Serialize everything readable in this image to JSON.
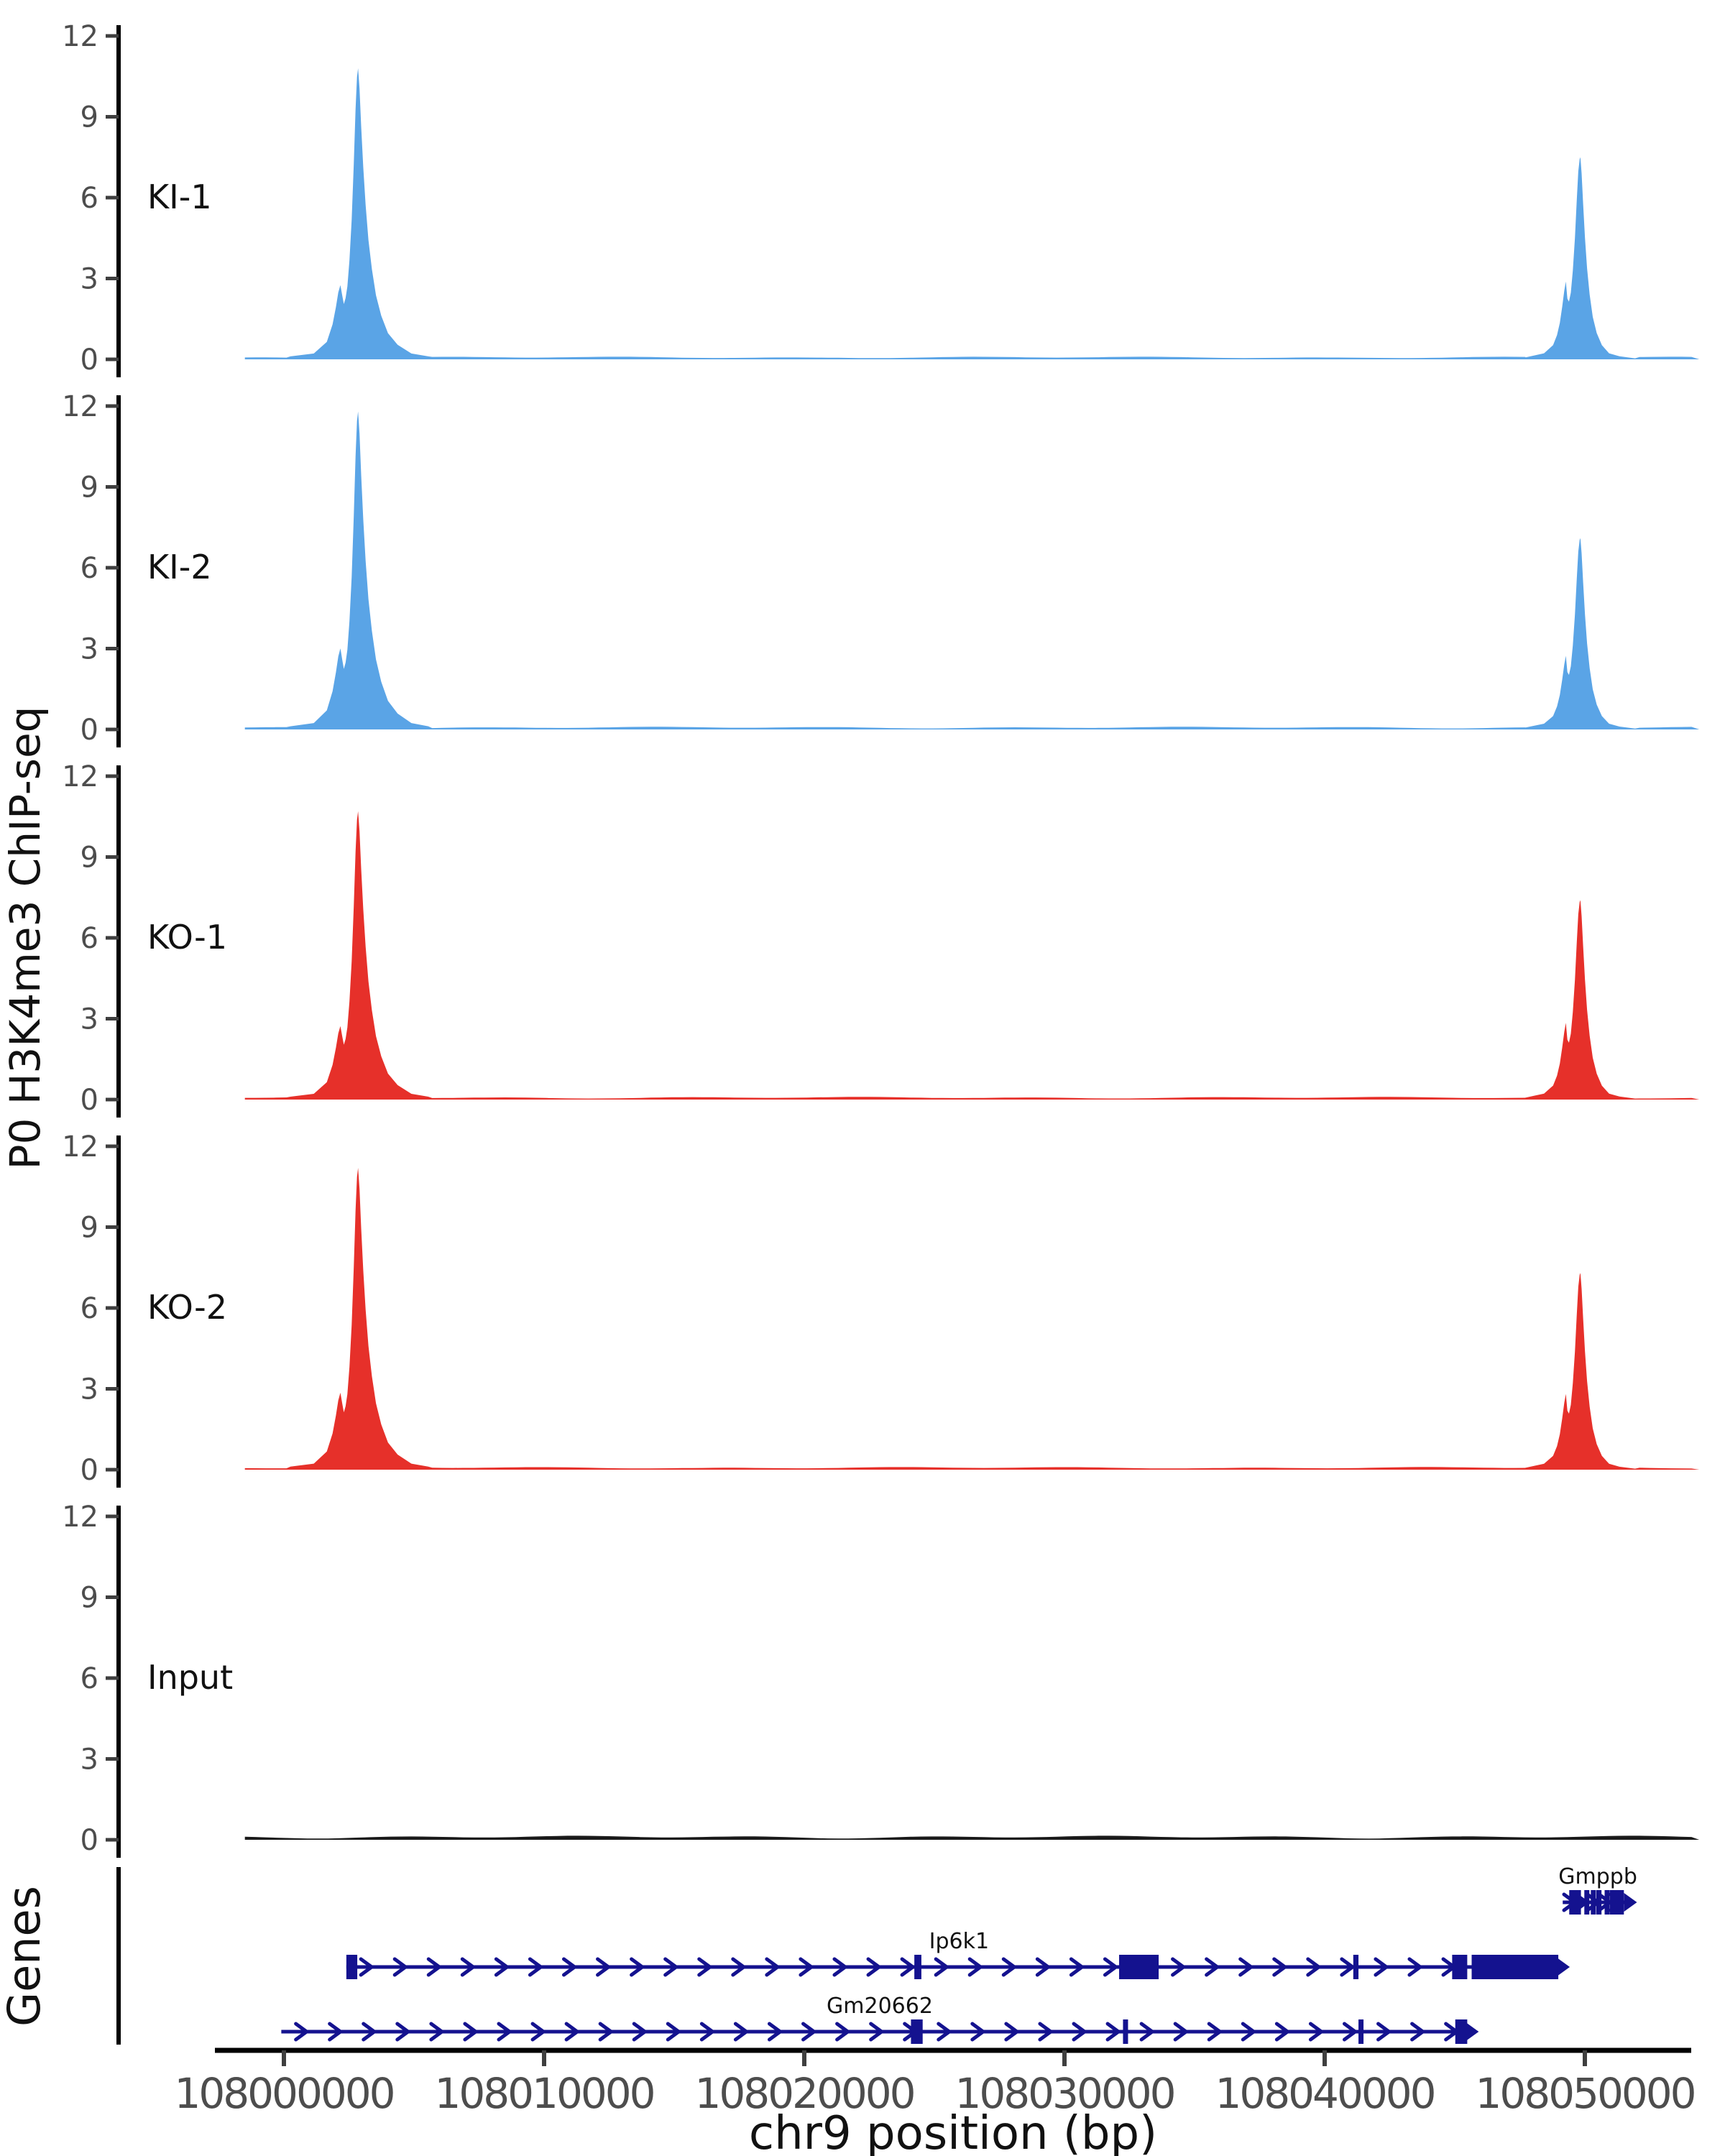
{
  "figure": {
    "y_axis_label": "P0 H3K4me3 ChIP-seq",
    "x_axis_label": "chr9 position (bp)",
    "genes_panel_label": "Genes",
    "background": "#ffffff"
  },
  "colors": {
    "ki": "#5AA4E6",
    "ko": "#E6302A",
    "input": "#1A1A1A",
    "gene": "#14128F",
    "spine": "#000000",
    "tick_mark": "#3F3F3F",
    "tick_label": "#4D4D4D",
    "text": "#111111"
  },
  "chart_data": {
    "type": "area",
    "title": "",
    "xlabel": "chr9 position (bp)",
    "ylabel": "P0 H3K4me3 ChIP-seq",
    "grid": false,
    "legend": "none",
    "x_axis": {
      "chrom": "chr9",
      "tick_positions": [
        108000000,
        108010000,
        108020000,
        108030000,
        108040000,
        108050000
      ],
      "tick_labels": [
        "108000000",
        "108010000",
        "108020000",
        "108030000",
        "108040000",
        "108050000"
      ],
      "data_start": 107998500,
      "data_end": 108054400
    },
    "y_axis": {
      "ticks": [
        0,
        3,
        6,
        9,
        12
      ],
      "tick_labels": [
        "0",
        "3",
        "6",
        "9",
        "12"
      ],
      "range": [
        0,
        12
      ]
    },
    "tracks": [
      {
        "label": "KI-1",
        "color_key": "ki",
        "peaks": [
          {
            "center": 108002850,
            "height": 10.8,
            "profile": "A"
          },
          {
            "center": 108049830,
            "height": 7.5,
            "profile": "B"
          }
        ]
      },
      {
        "label": "KI-2",
        "color_key": "ki",
        "peaks": [
          {
            "center": 108002850,
            "height": 11.8,
            "profile": "A"
          },
          {
            "center": 108049830,
            "height": 7.1,
            "profile": "B"
          }
        ]
      },
      {
        "label": "KO-1",
        "color_key": "ko",
        "peaks": [
          {
            "center": 108002850,
            "height": 10.7,
            "profile": "A"
          },
          {
            "center": 108049830,
            "height": 7.4,
            "profile": "B"
          }
        ]
      },
      {
        "label": "KO-2",
        "color_key": "ko",
        "peaks": [
          {
            "center": 108002850,
            "height": 11.2,
            "profile": "A"
          },
          {
            "center": 108049830,
            "height": 7.3,
            "profile": "B"
          }
        ]
      },
      {
        "label": "Input",
        "color_key": "input",
        "peaks": []
      }
    ],
    "peak_profiles": {
      "A": {
        "offsets": [
          -2600,
          -1700,
          -1200,
          -980,
          -850,
          -760,
          -680,
          -610,
          -545,
          -480,
          -410,
          -330,
          -245,
          -165,
          -95,
          -40,
          0,
          55,
          120,
          200,
          290,
          400,
          530,
          690,
          890,
          1150,
          1520,
          2050,
          2700
        ],
        "fractions": [
          0.01,
          0.02,
          0.06,
          0.12,
          0.18,
          0.23,
          0.255,
          0.22,
          0.19,
          0.21,
          0.25,
          0.34,
          0.48,
          0.67,
          0.86,
          0.97,
          1.0,
          0.93,
          0.8,
          0.66,
          0.53,
          0.41,
          0.31,
          0.22,
          0.15,
          0.09,
          0.05,
          0.02,
          0.01
        ]
      },
      "B": {
        "offsets": [
          -2100,
          -1400,
          -1050,
          -900,
          -790,
          -700,
          -620,
          -560,
          -500,
          -440,
          -370,
          -290,
          -210,
          -140,
          -80,
          -30,
          0,
          45,
          105,
          175,
          255,
          355,
          475,
          625,
          825,
          1100,
          1500,
          2100
        ],
        "fractions": [
          0.01,
          0.03,
          0.07,
          0.12,
          0.18,
          0.26,
          0.34,
          0.385,
          0.3,
          0.285,
          0.33,
          0.44,
          0.6,
          0.79,
          0.93,
          0.99,
          1.0,
          0.92,
          0.77,
          0.6,
          0.45,
          0.32,
          0.21,
          0.13,
          0.07,
          0.03,
          0.015,
          0.005
        ]
      }
    },
    "noise": {
      "signal_base": 0.05,
      "signal_amp": 0.05,
      "input_base": 0.07,
      "input_amp": 0.08
    },
    "genes": [
      {
        "name": "Gmppb",
        "row": 0,
        "start": 108049150,
        "end": 108051560,
        "strand": "+",
        "label_center": 108050500,
        "exons": [
          [
            108049400,
            108049850
          ],
          [
            108049980,
            108050130
          ],
          [
            108050230,
            108050330
          ],
          [
            108050440,
            108050640
          ],
          [
            108050760,
            108050860
          ],
          [
            108050960,
            108051500
          ]
        ],
        "arrow_spacing": 450
      },
      {
        "name": "Ip6k1",
        "row": 1,
        "start": 108002400,
        "end": 108048980,
        "strand": "+",
        "label_center": 108025950,
        "exons": [
          [
            108002400,
            108002820
          ],
          [
            108024230,
            108024500
          ],
          [
            108032100,
            108033620
          ],
          [
            108041100,
            108041300
          ],
          [
            108044900,
            108045480
          ],
          [
            108045650,
            108048980
          ]
        ],
        "arrow_spacing": 1300
      },
      {
        "name": "Gm20662",
        "row": 2,
        "start": 107999900,
        "end": 108045480,
        "strand": "+",
        "label_center": 108022900,
        "exons": [
          [
            108024100,
            108024550
          ],
          [
            108032250,
            108032430
          ],
          [
            108041300,
            108041480
          ],
          [
            108045020,
            108045480
          ]
        ],
        "arrow_spacing": 1300
      }
    ]
  }
}
